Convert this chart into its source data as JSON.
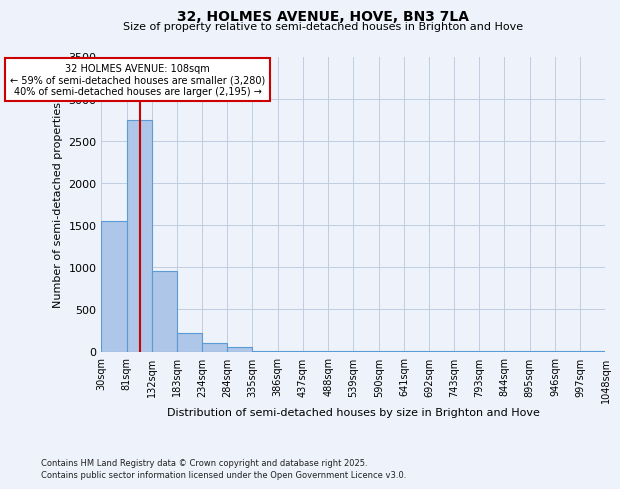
{
  "title1": "32, HOLMES AVENUE, HOVE, BN3 7LA",
  "title2": "Size of property relative to semi-detached houses in Brighton and Hove",
  "xlabel": "Distribution of semi-detached houses by size in Brighton and Hove",
  "ylabel": "Number of semi-detached properties",
  "footnote1": "Contains HM Land Registry data © Crown copyright and database right 2025.",
  "footnote2": "Contains public sector information licensed under the Open Government Licence v3.0.",
  "annotation_title": "32 HOLMES AVENUE: 108sqm",
  "annotation_line1": "← 59% of semi-detached houses are smaller (3,280)",
  "annotation_line2": "40% of semi-detached houses are larger (2,195) →",
  "property_value": 108,
  "bar_edges": [
    30,
    81,
    132,
    183,
    234,
    284,
    335,
    386,
    437,
    488,
    539,
    590,
    641,
    692,
    743,
    793,
    844,
    895,
    946,
    997,
    1048
  ],
  "bar_heights": [
    1550,
    2750,
    950,
    220,
    105,
    55,
    5,
    5,
    5,
    2,
    2,
    2,
    2,
    2,
    2,
    2,
    2,
    2,
    2,
    2
  ],
  "bar_color": "#aec6e8",
  "bar_edge_color": "#5b9bd5",
  "red_line_color": "#cc0000",
  "annotation_box_color": "#cc0000",
  "bg_color": "#eef2fa",
  "grid_color": "#c0cce0",
  "ylim": [
    0,
    3500
  ],
  "yticks": [
    0,
    500,
    1000,
    1500,
    2000,
    2500,
    3000,
    3500
  ],
  "tick_labels": [
    "30sqm",
    "81sqm",
    "132sqm",
    "183sqm",
    "234sqm",
    "284sqm",
    "335sqm",
    "386sqm",
    "437sqm",
    "488sqm",
    "539sqm",
    "590sqm",
    "641sqm",
    "692sqm",
    "743sqm",
    "793sqm",
    "844sqm",
    "895sqm",
    "946sqm",
    "997sqm",
    "1048sqm"
  ]
}
